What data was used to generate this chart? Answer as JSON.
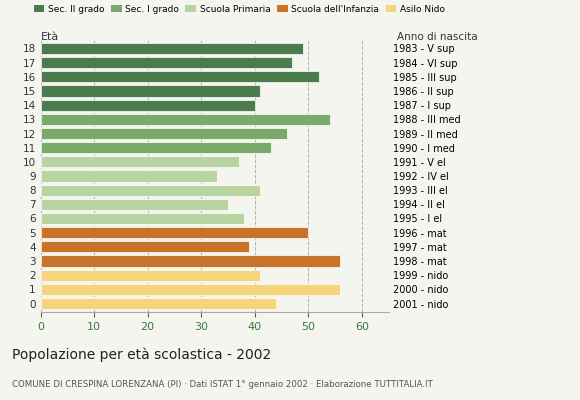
{
  "ages": [
    18,
    17,
    16,
    15,
    14,
    13,
    12,
    11,
    10,
    9,
    8,
    7,
    6,
    5,
    4,
    3,
    2,
    1,
    0
  ],
  "values": [
    49,
    47,
    52,
    41,
    40,
    54,
    46,
    43,
    37,
    33,
    41,
    35,
    38,
    50,
    39,
    56,
    41,
    56,
    44
  ],
  "right_labels": [
    "1983 - V sup",
    "1984 - VI sup",
    "1985 - III sup",
    "1986 - II sup",
    "1987 - I sup",
    "1988 - III med",
    "1989 - II med",
    "1990 - I med",
    "1991 - V el",
    "1992 - IV el",
    "1993 - III el",
    "1994 - II el",
    "1995 - I el",
    "1996 - mat",
    "1997 - mat",
    "1998 - mat",
    "1999 - nido",
    "2000 - nido",
    "2001 - nido"
  ],
  "bar_colors": [
    "#4a7c4e",
    "#4a7c4e",
    "#4a7c4e",
    "#4a7c4e",
    "#4a7c4e",
    "#7aaa6a",
    "#7aaa6a",
    "#7aaa6a",
    "#b8d4a0",
    "#b8d4a0",
    "#b8d4a0",
    "#b8d4a0",
    "#b8d4a0",
    "#c8732a",
    "#c8732a",
    "#c8732a",
    "#f5d57a",
    "#f5d57a",
    "#f5d57a"
  ],
  "legend_labels": [
    "Sec. II grado",
    "Sec. I grado",
    "Scuola Primaria",
    "Scuola dell'Infanzia",
    "Asilo Nido"
  ],
  "legend_colors": [
    "#4a7c4e",
    "#7aaa6a",
    "#b8d4a0",
    "#c8732a",
    "#f5d57a"
  ],
  "ylabel": "Età",
  "right_ylabel": "Anno di nascita",
  "title": "Popolazione per età scolastica - 2002",
  "subtitle": "COMUNE DI CRESPINA LORENZANA (PI) · Dati ISTAT 1° gennaio 2002 · Elaborazione TUTTITALIA.IT",
  "xlim": [
    0,
    65
  ],
  "xticks": [
    0,
    10,
    20,
    30,
    40,
    50,
    60
  ],
  "grid_color": "#aaaaaa",
  "bg_color": "#f5f5f0"
}
